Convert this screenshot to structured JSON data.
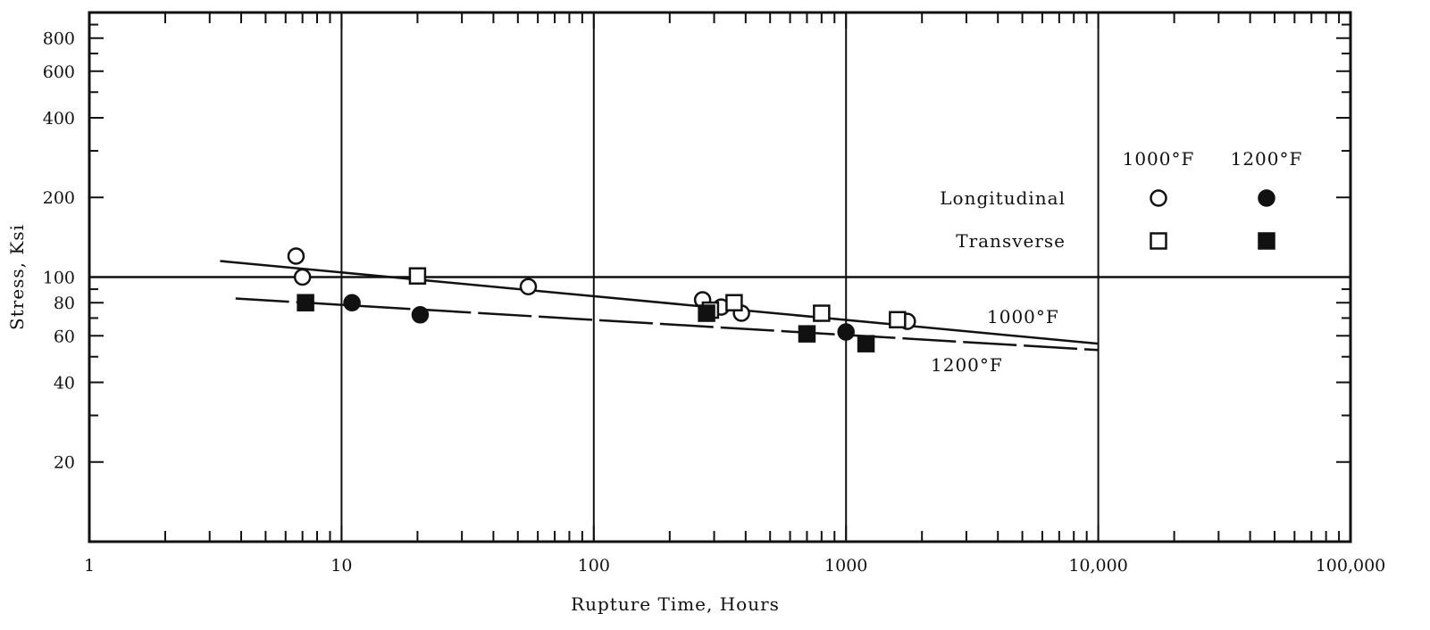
{
  "chart_data": {
    "type": "scatter",
    "xlabel": "Rupture Time, Hours",
    "ylabel": "Stress, Ksi",
    "x_scale": "log",
    "y_scale": "log",
    "xlim": [
      1,
      100000
    ],
    "ylim": [
      10,
      1000
    ],
    "grid": "vertical lines at decades",
    "x_tick_labels": [
      {
        "value": 1,
        "label": "1"
      },
      {
        "value": 10,
        "label": "10"
      },
      {
        "value": 100,
        "label": "100"
      },
      {
        "value": 1000,
        "label": "1000"
      },
      {
        "value": 10000,
        "label": "10,000"
      },
      {
        "value": 100000,
        "label": "100,000"
      }
    ],
    "y_tick_labels": [
      {
        "value": 20,
        "label": "20"
      },
      {
        "value": 40,
        "label": "40"
      },
      {
        "value": 60,
        "label": "60"
      },
      {
        "value": 80,
        "label": "80"
      },
      {
        "value": 100,
        "label": "100"
      },
      {
        "value": 200,
        "label": "200"
      },
      {
        "value": 400,
        "label": "400"
      },
      {
        "value": 600,
        "label": "600"
      },
      {
        "value": 800,
        "label": "800"
      }
    ],
    "reference_line": {
      "y": 100
    },
    "series": [
      {
        "name": "Longitudinal 1000°F",
        "marker": "open-circle",
        "points": [
          [
            6.6,
            120
          ],
          [
            7.0,
            100
          ],
          [
            55,
            92
          ],
          [
            270,
            82
          ],
          [
            320,
            77
          ],
          [
            385,
            73
          ],
          [
            1750,
            68
          ]
        ]
      },
      {
        "name": "Transverse 1000°F",
        "marker": "open-square",
        "points": [
          [
            20,
            101
          ],
          [
            290,
            75
          ],
          [
            360,
            80
          ],
          [
            800,
            73
          ],
          [
            1600,
            69
          ]
        ]
      },
      {
        "name": "Longitudinal 1200°F",
        "marker": "filled-circle",
        "points": [
          [
            11,
            80
          ],
          [
            20.5,
            72
          ],
          [
            1000,
            62
          ]
        ]
      },
      {
        "name": "Transverse 1200°F",
        "marker": "filled-square",
        "points": [
          [
            7.2,
            80
          ],
          [
            280,
            73
          ],
          [
            700,
            61
          ],
          [
            1200,
            56
          ]
        ]
      }
    ],
    "fit_lines": [
      {
        "label": "1000°F",
        "from": [
          3.3,
          115
        ],
        "to": [
          10000,
          56
        ],
        "style": "solid"
      },
      {
        "label": "1200°F",
        "from": [
          3.8,
          83
        ],
        "to": [
          10000,
          53
        ],
        "style": "dashed"
      }
    ],
    "legend": {
      "placement": "right",
      "column_headers": [
        "1000°F",
        "1200°F"
      ],
      "row_labels": [
        "Longitudinal",
        "Transverse"
      ]
    }
  }
}
